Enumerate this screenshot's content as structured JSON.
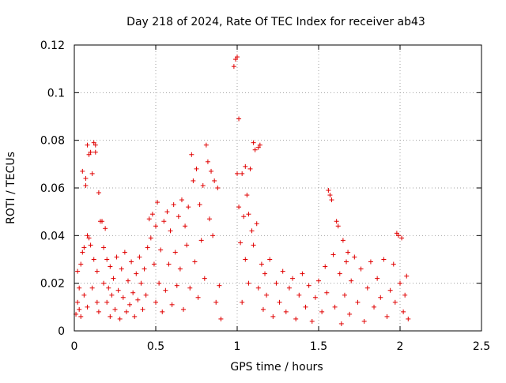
{
  "chart_data": {
    "type": "scatter",
    "title": "Day 218 of 2024, Rate Of TEC Index for receiver ab43",
    "xlabel": "GPS time / hours",
    "ylabel": "ROTI / TECUs",
    "xlim": [
      0,
      2.5
    ],
    "ylim": [
      0,
      0.12
    ],
    "grid": true,
    "marker": "+",
    "color": "#e00000",
    "x_ticks": [
      {
        "value": 0,
        "label": "0"
      },
      {
        "value": 0.5,
        "label": "0.5"
      },
      {
        "value": 1,
        "label": "1"
      },
      {
        "value": 1.5,
        "label": "1.5"
      },
      {
        "value": 2,
        "label": "2"
      },
      {
        "value": 2.5,
        "label": "2.5"
      }
    ],
    "y_ticks": [
      {
        "value": 0,
        "label": "0"
      },
      {
        "value": 0.02,
        "label": "0.02"
      },
      {
        "value": 0.04,
        "label": "0.04"
      },
      {
        "value": 0.06,
        "label": "0.06"
      },
      {
        "value": 0.08,
        "label": "0.08"
      },
      {
        "value": 0.1,
        "label": "0.1"
      },
      {
        "value": 0.12,
        "label": "0.12"
      }
    ],
    "series": [
      {
        "name": "ROTI",
        "points": [
          [
            0.01,
            0.007
          ],
          [
            0.02,
            0.012
          ],
          [
            0.02,
            0.025
          ],
          [
            0.03,
            0.009
          ],
          [
            0.03,
            0.018
          ],
          [
            0.04,
            0.028
          ],
          [
            0.04,
            0.006
          ],
          [
            0.05,
            0.033
          ],
          [
            0.05,
            0.067
          ],
          [
            0.06,
            0.035
          ],
          [
            0.06,
            0.015
          ],
          [
            0.07,
            0.061
          ],
          [
            0.07,
            0.064
          ],
          [
            0.08,
            0.078
          ],
          [
            0.08,
            0.04
          ],
          [
            0.08,
            0.01
          ],
          [
            0.09,
            0.074
          ],
          [
            0.09,
            0.039
          ],
          [
            0.1,
            0.075
          ],
          [
            0.1,
            0.036
          ],
          [
            0.11,
            0.066
          ],
          [
            0.11,
            0.018
          ],
          [
            0.12,
            0.079
          ],
          [
            0.12,
            0.03
          ],
          [
            0.13,
            0.078
          ],
          [
            0.13,
            0.075
          ],
          [
            0.14,
            0.025
          ],
          [
            0.14,
            0.012
          ],
          [
            0.15,
            0.058
          ],
          [
            0.15,
            0.008
          ],
          [
            0.16,
            0.046
          ],
          [
            0.17,
            0.046
          ],
          [
            0.18,
            0.035
          ],
          [
            0.18,
            0.02
          ],
          [
            0.19,
            0.043
          ],
          [
            0.2,
            0.03
          ],
          [
            0.2,
            0.012
          ],
          [
            0.21,
            0.018
          ],
          [
            0.22,
            0.027
          ],
          [
            0.22,
            0.006
          ],
          [
            0.23,
            0.015
          ],
          [
            0.24,
            0.022
          ],
          [
            0.25,
            0.009
          ],
          [
            0.26,
            0.031
          ],
          [
            0.27,
            0.017
          ],
          [
            0.28,
            0.005
          ],
          [
            0.29,
            0.026
          ],
          [
            0.3,
            0.014
          ],
          [
            0.31,
            0.033
          ],
          [
            0.32,
            0.008
          ],
          [
            0.33,
            0.021
          ],
          [
            0.34,
            0.011
          ],
          [
            0.35,
            0.029
          ],
          [
            0.36,
            0.016
          ],
          [
            0.37,
            0.006
          ],
          [
            0.38,
            0.024
          ],
          [
            0.39,
            0.013
          ],
          [
            0.4,
            0.031
          ],
          [
            0.41,
            0.02
          ],
          [
            0.42,
            0.009
          ],
          [
            0.43,
            0.026
          ],
          [
            0.44,
            0.015
          ],
          [
            0.45,
            0.035
          ],
          [
            0.46,
            0.047
          ],
          [
            0.47,
            0.039
          ],
          [
            0.48,
            0.049
          ],
          [
            0.49,
            0.028
          ],
          [
            0.5,
            0.044
          ],
          [
            0.5,
            0.012
          ],
          [
            0.51,
            0.054
          ],
          [
            0.52,
            0.02
          ],
          [
            0.53,
            0.034
          ],
          [
            0.54,
            0.008
          ],
          [
            0.55,
            0.046
          ],
          [
            0.56,
            0.017
          ],
          [
            0.57,
            0.05
          ],
          [
            0.58,
            0.028
          ],
          [
            0.59,
            0.042
          ],
          [
            0.6,
            0.011
          ],
          [
            0.61,
            0.053
          ],
          [
            0.62,
            0.033
          ],
          [
            0.63,
            0.019
          ],
          [
            0.64,
            0.048
          ],
          [
            0.65,
            0.026
          ],
          [
            0.66,
            0.055
          ],
          [
            0.67,
            0.009
          ],
          [
            0.68,
            0.044
          ],
          [
            0.69,
            0.036
          ],
          [
            0.7,
            0.052
          ],
          [
            0.71,
            0.018
          ],
          [
            0.72,
            0.074
          ],
          [
            0.73,
            0.063
          ],
          [
            0.74,
            0.029
          ],
          [
            0.75,
            0.068
          ],
          [
            0.76,
            0.014
          ],
          [
            0.77,
            0.053
          ],
          [
            0.78,
            0.038
          ],
          [
            0.79,
            0.061
          ],
          [
            0.8,
            0.022
          ],
          [
            0.81,
            0.078
          ],
          [
            0.82,
            0.071
          ],
          [
            0.83,
            0.047
          ],
          [
            0.84,
            0.067
          ],
          [
            0.85,
            0.04
          ],
          [
            0.86,
            0.063
          ],
          [
            0.87,
            0.012
          ],
          [
            0.88,
            0.06
          ],
          [
            0.89,
            0.019
          ],
          [
            0.9,
            0.005
          ],
          [
            0.98,
            0.111
          ],
          [
            0.99,
            0.114
          ],
          [
            1.0,
            0.115
          ],
          [
            1.0,
            0.066
          ],
          [
            1.01,
            0.089
          ],
          [
            1.01,
            0.052
          ],
          [
            1.02,
            0.037
          ],
          [
            1.03,
            0.066
          ],
          [
            1.03,
            0.012
          ],
          [
            1.04,
            0.048
          ],
          [
            1.05,
            0.069
          ],
          [
            1.05,
            0.03
          ],
          [
            1.06,
            0.057
          ],
          [
            1.07,
            0.049
          ],
          [
            1.07,
            0.02
          ],
          [
            1.08,
            0.068
          ],
          [
            1.09,
            0.042
          ],
          [
            1.1,
            0.079
          ],
          [
            1.1,
            0.036
          ],
          [
            1.11,
            0.076
          ],
          [
            1.12,
            0.045
          ],
          [
            1.13,
            0.077
          ],
          [
            1.13,
            0.018
          ],
          [
            1.14,
            0.078
          ],
          [
            1.15,
            0.028
          ],
          [
            1.16,
            0.009
          ],
          [
            1.17,
            0.024
          ],
          [
            1.18,
            0.015
          ],
          [
            1.2,
            0.03
          ],
          [
            1.22,
            0.006
          ],
          [
            1.24,
            0.02
          ],
          [
            1.26,
            0.012
          ],
          [
            1.28,
            0.025
          ],
          [
            1.3,
            0.008
          ],
          [
            1.32,
            0.018
          ],
          [
            1.34,
            0.022
          ],
          [
            1.36,
            0.005
          ],
          [
            1.38,
            0.015
          ],
          [
            1.4,
            0.024
          ],
          [
            1.42,
            0.01
          ],
          [
            1.44,
            0.019
          ],
          [
            1.46,
            0.004
          ],
          [
            1.48,
            0.014
          ],
          [
            1.5,
            0.021
          ],
          [
            1.52,
            0.008
          ],
          [
            1.54,
            0.027
          ],
          [
            1.55,
            0.016
          ],
          [
            1.56,
            0.059
          ],
          [
            1.57,
            0.057
          ],
          [
            1.58,
            0.055
          ],
          [
            1.59,
            0.032
          ],
          [
            1.6,
            0.01
          ],
          [
            1.61,
            0.046
          ],
          [
            1.62,
            0.044
          ],
          [
            1.63,
            0.024
          ],
          [
            1.64,
            0.003
          ],
          [
            1.65,
            0.038
          ],
          [
            1.66,
            0.015
          ],
          [
            1.67,
            0.029
          ],
          [
            1.68,
            0.033
          ],
          [
            1.69,
            0.007
          ],
          [
            1.7,
            0.021
          ],
          [
            1.72,
            0.031
          ],
          [
            1.74,
            0.012
          ],
          [
            1.76,
            0.026
          ],
          [
            1.78,
            0.004
          ],
          [
            1.8,
            0.018
          ],
          [
            1.82,
            0.029
          ],
          [
            1.84,
            0.01
          ],
          [
            1.86,
            0.022
          ],
          [
            1.88,
            0.014
          ],
          [
            1.9,
            0.03
          ],
          [
            1.92,
            0.006
          ],
          [
            1.94,
            0.017
          ],
          [
            1.96,
            0.028
          ],
          [
            1.97,
            0.012
          ],
          [
            1.98,
            0.041
          ],
          [
            1.99,
            0.04
          ],
          [
            2.0,
            0.02
          ],
          [
            2.01,
            0.039
          ],
          [
            2.02,
            0.008
          ],
          [
            2.03,
            0.015
          ],
          [
            2.04,
            0.023
          ],
          [
            2.05,
            0.005
          ]
        ]
      }
    ]
  }
}
